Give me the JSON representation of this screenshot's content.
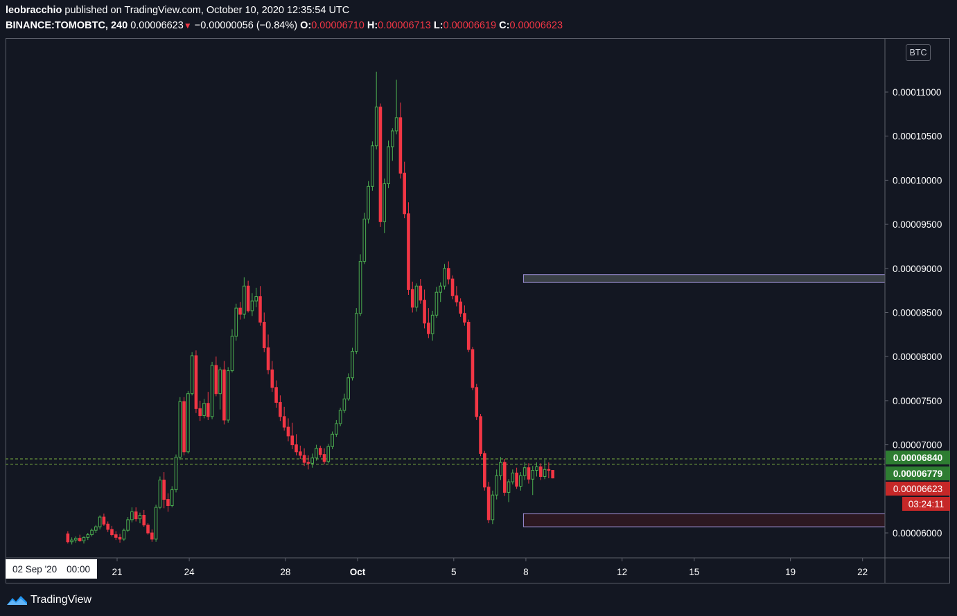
{
  "header": {
    "author": "leobracchio",
    "published_text": " published on TradingView.com, October 10, 2020 12:35:54 UTC",
    "symbol": "BINANCE:TOMOBTC, 240",
    "last": "0.00006623",
    "change": "−0.00000056 (−0.84%)",
    "open_label": "O:",
    "open": "0.00006710",
    "high_label": "H:",
    "high": "0.00006713",
    "low_label": "L:",
    "low": "0.00006619",
    "close_label": "C:",
    "close": "0.00006623"
  },
  "colors": {
    "background": "#131722",
    "up": "#26a69a",
    "up_candle": "#4caf50",
    "down_candle": "#f23645",
    "zone_upper_fill": "#3a4046",
    "zone_upper_border": "#9c8fd6",
    "zone_lower_fill": "#2c1821",
    "zone_lower_border": "#9c8fd6",
    "level_green": "#2e7d32",
    "level_red": "#c62828"
  },
  "axis": {
    "currency": "BTC",
    "crosshair_date": "02 Sep '20",
    "crosshair_time": "00:00"
  },
  "price_tags": {
    "level_high": "0.00006840",
    "level_low": "0.00006779",
    "last_price": "0.00006623",
    "countdown": "03:24:11"
  },
  "footer": {
    "brand": "TradingView"
  },
  "chart_data": {
    "type": "candlestick",
    "y_ticks": [
      "0.00011000",
      "0.00010500",
      "0.00010000",
      "0.00009500",
      "0.00009000",
      "0.00008500",
      "0.00008000",
      "0.00007500",
      "0.00007000",
      "0.00006000"
    ],
    "y_tick_values": [
      0.00011,
      0.000105,
      0.0001,
      9.5e-05,
      9e-05,
      8.5e-05,
      8e-05,
      7.5e-05,
      7e-05,
      6e-05
    ],
    "x_ticks": [
      {
        "label": "21",
        "day": 21
      },
      {
        "label": "24",
        "day": 24
      },
      {
        "label": "28",
        "day": 28
      },
      {
        "label": "Oct",
        "day": 31
      },
      {
        "label": "5",
        "day": 35
      },
      {
        "label": "8",
        "day": 38
      },
      {
        "label": "12",
        "day": 42
      },
      {
        "label": "15",
        "day": 45
      },
      {
        "label": "19",
        "day": 49
      },
      {
        "label": "22",
        "day": 52
      }
    ],
    "horizontal_levels": [
      6.84e-05,
      6.779e-05
    ],
    "zones": [
      {
        "name": "resistance",
        "x_start_day": 37.9,
        "y_top": 8.93e-05,
        "y_bottom": 8.84e-05
      },
      {
        "name": "support",
        "x_start_day": 37.9,
        "y_top": 6.22e-05,
        "y_bottom": 6.07e-05
      }
    ],
    "candles": [
      [
        5.99e-05,
        6.02e-05,
        5.88e-05,
        5.9e-05
      ],
      [
        5.9e-05,
        5.95e-05,
        5.87e-05,
        5.92e-05
      ],
      [
        5.92e-05,
        5.96e-05,
        5.89e-05,
        5.94e-05
      ],
      [
        5.94e-05,
        5.98e-05,
        5.9e-05,
        5.91e-05
      ],
      [
        5.91e-05,
        5.96e-05,
        5.88e-05,
        5.95e-05
      ],
      [
        5.95e-05,
        6e-05,
        5.92e-05,
        5.98e-05
      ],
      [
        5.98e-05,
        6.05e-05,
        5.96e-05,
        6.03e-05
      ],
      [
        6.03e-05,
        6.09e-05,
        6e-05,
        6.07e-05
      ],
      [
        6.07e-05,
        6.2e-05,
        6.04e-05,
        6.18e-05
      ],
      [
        6.18e-05,
        6.22e-05,
        6.08e-05,
        6.1e-05
      ],
      [
        6.1e-05,
        6.13e-05,
        6.01e-05,
        6.04e-05
      ],
      [
        6.04e-05,
        6.08e-05,
        5.96e-05,
        5.98e-05
      ],
      [
        5.98e-05,
        6.02e-05,
        5.92e-05,
        5.95e-05
      ],
      [
        5.95e-05,
        5.99e-05,
        5.89e-05,
        5.93e-05
      ],
      [
        5.93e-05,
        6.05e-05,
        5.91e-05,
        6.03e-05
      ],
      [
        6.03e-05,
        6.18e-05,
        6.01e-05,
        6.15e-05
      ],
      [
        6.15e-05,
        6.29e-05,
        6.12e-05,
        6.24e-05
      ],
      [
        6.24e-05,
        6.29e-05,
        6.13e-05,
        6.16e-05
      ],
      [
        6.16e-05,
        6.23e-05,
        6.11e-05,
        6.2e-05
      ],
      [
        6.2e-05,
        6.26e-05,
        6.07e-05,
        6.09e-05
      ],
      [
        6.09e-05,
        6.11e-05,
        5.98e-05,
        6e-05
      ],
      [
        6e-05,
        6.04e-05,
        5.9e-05,
        5.93e-05
      ],
      [
        5.93e-05,
        6.32e-05,
        5.9e-05,
        6.29e-05
      ],
      [
        6.29e-05,
        6.64e-05,
        6.27e-05,
        6.6e-05
      ],
      [
        6.6e-05,
        6.69e-05,
        6.28e-05,
        6.38e-05
      ],
      [
        6.38e-05,
        6.45e-05,
        6.24e-05,
        6.31e-05
      ],
      [
        6.31e-05,
        6.53e-05,
        6.29e-05,
        6.49e-05
      ],
      [
        6.49e-05,
        6.89e-05,
        6.46e-05,
        6.86e-05
      ],
      [
        6.86e-05,
        7.54e-05,
        6.83e-05,
        7.49e-05
      ],
      [
        7.49e-05,
        7.54e-05,
        6.88e-05,
        6.92e-05
      ],
      [
        6.92e-05,
        7.61e-05,
        6.9e-05,
        7.58e-05
      ],
      [
        7.58e-05,
        8.05e-05,
        7.56e-05,
        8.01e-05
      ],
      [
        8.01e-05,
        8.07e-05,
        7.36e-05,
        7.41e-05
      ],
      [
        7.41e-05,
        7.5e-05,
        7.27e-05,
        7.33e-05
      ],
      [
        7.33e-05,
        7.52e-05,
        7.3e-05,
        7.47e-05
      ],
      [
        7.47e-05,
        7.6e-05,
        7.28e-05,
        7.32e-05
      ],
      [
        7.32e-05,
        7.94e-05,
        7.29e-05,
        7.9e-05
      ],
      [
        7.9e-05,
        8e-05,
        7.55e-05,
        7.58e-05
      ],
      [
        7.58e-05,
        7.88e-05,
        7.4e-05,
        7.85e-05
      ],
      [
        7.85e-05,
        7.95e-05,
        7.23e-05,
        7.28e-05
      ],
      [
        7.28e-05,
        7.88e-05,
        7.25e-05,
        7.84e-05
      ],
      [
        7.84e-05,
        8.31e-05,
        7.82e-05,
        8.23e-05
      ],
      [
        8.23e-05,
        8.6e-05,
        8.18e-05,
        8.55e-05
      ],
      [
        8.55e-05,
        8.62e-05,
        8.42e-05,
        8.48e-05
      ],
      [
        8.48e-05,
        8.9e-05,
        8.43e-05,
        8.8e-05
      ],
      [
        8.8e-05,
        8.86e-05,
        8.5e-05,
        8.52e-05
      ],
      [
        8.52e-05,
        8.72e-05,
        8.46e-05,
        8.63e-05
      ],
      [
        8.63e-05,
        8.78e-05,
        8.56e-05,
        8.68e-05
      ],
      [
        8.68e-05,
        8.8e-05,
        8.35e-05,
        8.39e-05
      ],
      [
        8.39e-05,
        8.5e-05,
        8.05e-05,
        8.1e-05
      ],
      [
        8.1e-05,
        8.25e-05,
        7.8e-05,
        7.85e-05
      ],
      [
        7.85e-05,
        7.95e-05,
        7.6e-05,
        7.65e-05
      ],
      [
        7.65e-05,
        7.73e-05,
        7.42e-05,
        7.48e-05
      ],
      [
        7.48e-05,
        7.56e-05,
        7.27e-05,
        7.32e-05
      ],
      [
        7.32e-05,
        7.43e-05,
        7.16e-05,
        7.2e-05
      ],
      [
        7.2e-05,
        7.3e-05,
        7.04e-05,
        7.1e-05
      ],
      [
        7.1e-05,
        7.25e-05,
        6.95e-05,
        7e-05
      ],
      [
        7e-05,
        7.12e-05,
        6.88e-05,
        6.92e-05
      ],
      [
        6.92e-05,
        6.99e-05,
        6.84e-05,
        6.88e-05
      ],
      [
        6.88e-05,
        6.96e-05,
        6.76e-05,
        6.8e-05
      ],
      [
        6.8e-05,
        6.88e-05,
        6.72e-05,
        6.79e-05
      ],
      [
        6.79e-05,
        6.9e-05,
        6.74e-05,
        6.85e-05
      ],
      [
        6.85e-05,
        7e-05,
        6.82e-05,
        6.96e-05
      ],
      [
        6.96e-05,
        6.99e-05,
        6.86e-05,
        6.89e-05
      ],
      [
        6.89e-05,
        6.96e-05,
        6.78e-05,
        6.81e-05
      ],
      [
        6.81e-05,
        7.01e-05,
        6.79e-05,
        6.98e-05
      ],
      [
        6.98e-05,
        7.15e-05,
        6.95e-05,
        7.12e-05
      ],
      [
        7.12e-05,
        7.28e-05,
        7.09e-05,
        7.24e-05
      ],
      [
        7.24e-05,
        7.42e-05,
        7.21e-05,
        7.39e-05
      ],
      [
        7.39e-05,
        7.58e-05,
        7.36e-05,
        7.52e-05
      ],
      [
        7.52e-05,
        7.81e-05,
        7.5e-05,
        7.76e-05
      ],
      [
        7.76e-05,
        8.1e-05,
        7.73e-05,
        8.06e-05
      ],
      [
        8.06e-05,
        8.55e-05,
        8.03e-05,
        8.49e-05
      ],
      [
        8.49e-05,
        9.16e-05,
        8.46e-05,
        9.08e-05
      ],
      [
        9.08e-05,
        9.63e-05,
        9.05e-05,
        9.56e-05
      ],
      [
        9.56e-05,
        9.99e-05,
        9.51e-05,
        9.93e-05
      ],
      [
        9.93e-05,
        0.0001044,
        9.88e-05,
        0.0001039
      ],
      [
        0.0001039,
        0.0001123,
        0.0001035,
        0.0001083
      ],
      [
        0.0001083,
        0.0001087,
        9.47e-05,
        9.53e-05
      ],
      [
        9.53e-05,
        0.0001002,
        9.4e-05,
        9.96e-05
      ],
      [
        9.96e-05,
        0.0001045,
        9.91e-05,
        0.0001038
      ],
      [
        0.0001038,
        0.0001059,
        0.0001022,
        0.0001056
      ],
      [
        0.0001056,
        0.0001114,
        0.0001052,
        0.0001071
      ],
      [
        0.0001071,
        0.0001088,
        0.0001002,
        0.0001008
      ],
      [
        0.0001008,
        0.0001021,
        9.57e-05,
        9.62e-05
      ],
      [
        9.62e-05,
        9.75e-05,
        8.7e-05,
        8.76e-05
      ],
      [
        8.76e-05,
        8.85e-05,
        8.5e-05,
        8.56e-05
      ],
      [
        8.56e-05,
        8.83e-05,
        8.51e-05,
        8.8e-05
      ],
      [
        8.8e-05,
        8.88e-05,
        8.6e-05,
        8.64e-05
      ],
      [
        8.64e-05,
        8.76e-05,
        8.32e-05,
        8.38e-05
      ],
      [
        8.38e-05,
        8.55e-05,
        8.21e-05,
        8.26e-05
      ],
      [
        8.26e-05,
        8.52e-05,
        8.18e-05,
        8.47e-05
      ],
      [
        8.47e-05,
        8.79e-05,
        8.44e-05,
        8.73e-05
      ],
      [
        8.73e-05,
        8.84e-05,
        8.62e-05,
        8.8e-05
      ],
      [
        8.8e-05,
        9.05e-05,
        8.76e-05,
        9e-05
      ],
      [
        9e-05,
        9.08e-05,
        8.82e-05,
        8.88e-05
      ],
      [
        8.88e-05,
        8.92e-05,
        8.65e-05,
        8.69e-05
      ],
      [
        8.69e-05,
        8.8e-05,
        8.57e-05,
        8.62e-05
      ],
      [
        8.62e-05,
        8.66e-05,
        8.45e-05,
        8.49e-05
      ],
      [
        8.49e-05,
        8.58e-05,
        8.35e-05,
        8.39e-05
      ],
      [
        8.39e-05,
        8.42e-05,
        8.05e-05,
        8.08e-05
      ],
      [
        8.08e-05,
        8.11e-05,
        7.62e-05,
        7.65e-05
      ],
      [
        7.65e-05,
        7.69e-05,
        7.28e-05,
        7.32e-05
      ],
      [
        7.32e-05,
        7.35e-05,
        6.87e-05,
        6.9e-05
      ],
      [
        6.9e-05,
        6.93e-05,
        6.48e-05,
        6.52e-05
      ],
      [
        6.52e-05,
        6.58e-05,
        6.11e-05,
        6.15e-05
      ],
      [
        6.15e-05,
        6.48e-05,
        6.1e-05,
        6.43e-05
      ],
      [
        6.43e-05,
        6.72e-05,
        6.38e-05,
        6.65e-05
      ],
      [
        6.65e-05,
        6.86e-05,
        6.6e-05,
        6.8e-05
      ],
      [
        6.8e-05,
        6.84e-05,
        6.42e-05,
        6.46e-05
      ],
      [
        6.46e-05,
        6.61e-05,
        6.35e-05,
        6.58e-05
      ],
      [
        6.58e-05,
        6.72e-05,
        6.55e-05,
        6.68e-05
      ],
      [
        6.68e-05,
        6.74e-05,
        6.5e-05,
        6.53e-05
      ],
      [
        6.53e-05,
        6.69e-05,
        6.48e-05,
        6.65e-05
      ],
      [
        6.65e-05,
        6.8e-05,
        6.6e-05,
        6.74e-05
      ],
      [
        6.74e-05,
        6.79e-05,
        6.56e-05,
        6.61e-05
      ],
      [
        6.61e-05,
        6.76e-05,
        6.43e-05,
        6.71e-05
      ],
      [
        6.71e-05,
        6.8e-05,
        6.64e-05,
        6.75e-05
      ],
      [
        6.75e-05,
        6.79e-05,
        6.6e-05,
        6.64e-05
      ],
      [
        6.64e-05,
        6.83e-05,
        6.61e-05,
        6.72e-05
      ],
      [
        6.72e-05,
        6.8e-05,
        6.62e-05,
        6.71e-05
      ],
      [
        6.71e-05,
        6.713e-05,
        6.619e-05,
        6.623e-05
      ]
    ]
  }
}
